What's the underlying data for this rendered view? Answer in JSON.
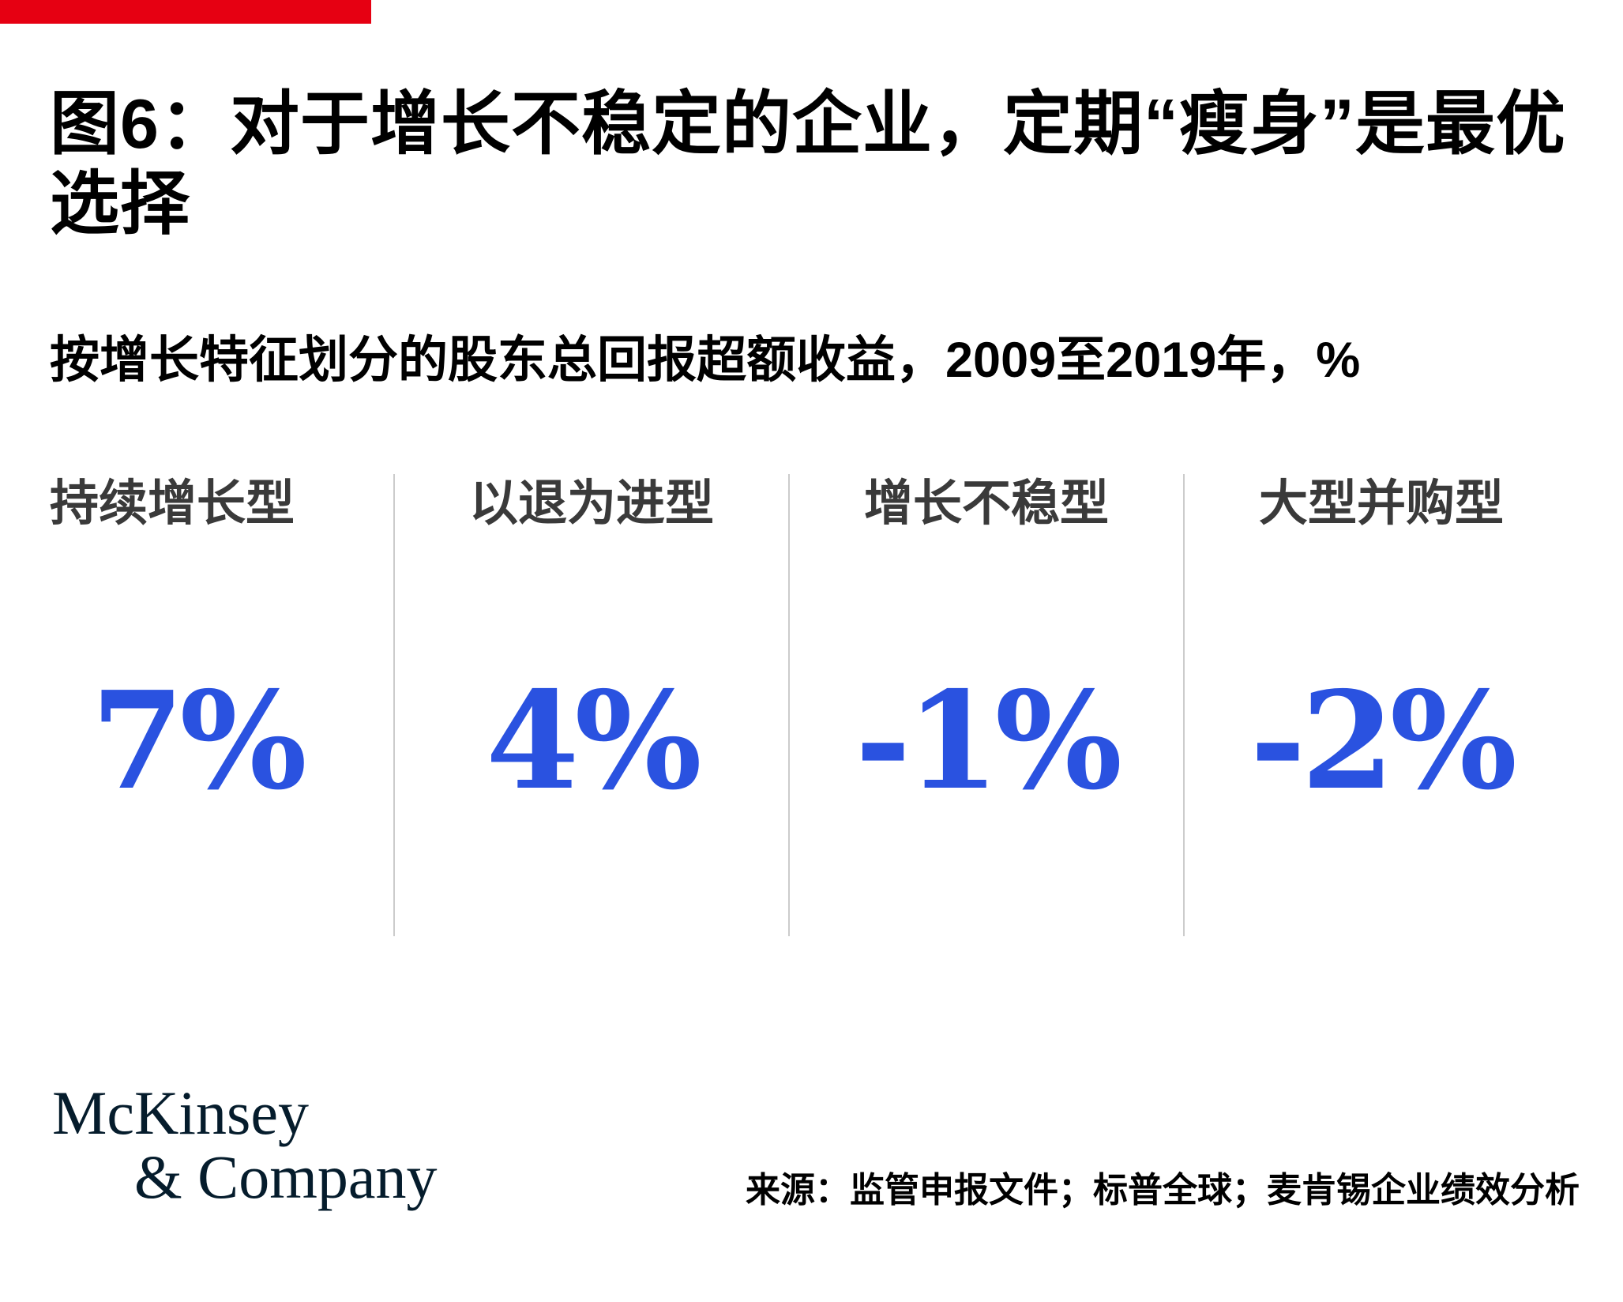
{
  "title": "图6：对于增长不稳定的企业，定期“瘦身”是最优选择",
  "title_lines": [
    "图6：对于增长不稳定的企业，定期“瘦身”是最优",
    "选择"
  ],
  "subtitle": "按增长特征划分的股东总回报超额收益，2009至2019年，%",
  "columns": [
    {
      "label": "持续增长型",
      "value": "7%"
    },
    {
      "label": "以退为进型",
      "value": "4%"
    },
    {
      "label": "增长不稳型",
      "value": "-1%"
    },
    {
      "label": "大型并购型",
      "value": "-2%"
    }
  ],
  "footer": {
    "logo_lines": [
      "McKinsey",
      "& Company"
    ],
    "source": "来源：监管申报文件；标普全球；麦肯锡企业绩效分析"
  },
  "colors": {
    "accent_red": "#e60012",
    "value_blue": "#2a52e0",
    "divider_gray": "#cccccc",
    "header_gray": "#3a3a3a",
    "logo_navy": "#051c2c",
    "text_black": "#000000"
  },
  "chart_data": {
    "type": "table",
    "title": "图6：对于增长不稳定的企业，定期“瘦身”是最优选择",
    "subtitle": "按增长特征划分的股东总回报超额收益，2009至2019年，%",
    "categories": [
      "持续增长型",
      "以退为进型",
      "增长不稳型",
      "大型并购型"
    ],
    "values": [
      7,
      4,
      -1,
      -2
    ],
    "unit": "%",
    "value_labels": [
      "7%",
      "4%",
      "-1%",
      "-2%"
    ],
    "legend_position": "none",
    "grid": false
  }
}
